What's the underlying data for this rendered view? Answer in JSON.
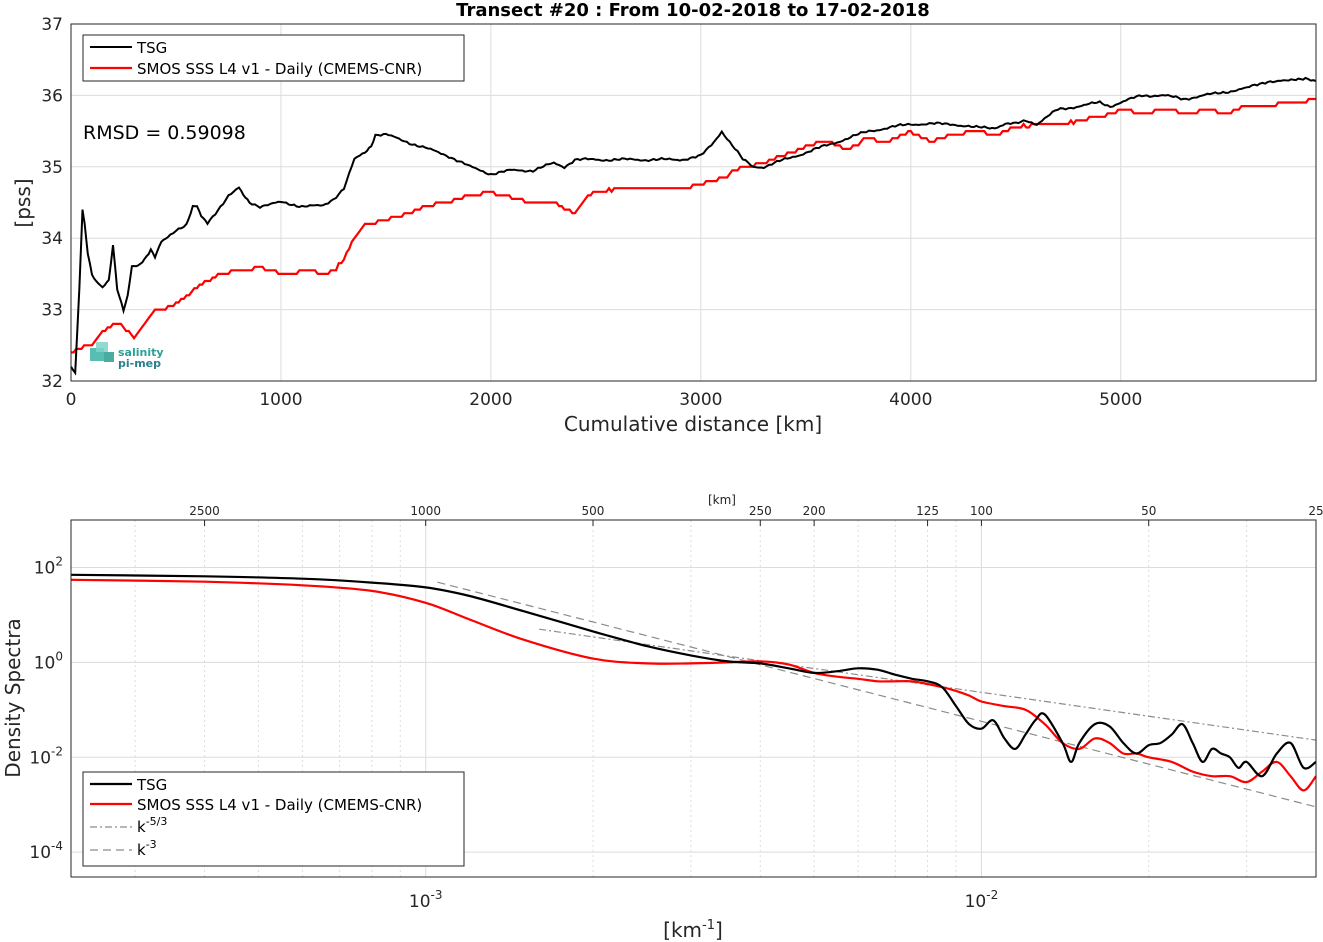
{
  "chart_data": [
    {
      "type": "line",
      "title": "Transect #20 : From 10-02-2018 to 17-02-2018",
      "xlabel": "Cumulative distance [km]",
      "ylabel": "[pss]",
      "xlim": [
        0,
        5930
      ],
      "ylim": [
        32,
        37
      ],
      "xticks": [
        "0",
        "1000",
        "2000",
        "3000",
        "4000",
        "5000"
      ],
      "yticks": [
        "32",
        "33",
        "34",
        "35",
        "36",
        "37"
      ],
      "grid": true,
      "legend": "top-left",
      "annotation": "RMSD = 0.59098",
      "watermark": {
        "line1": "salinity",
        "line2": "pi-mep"
      },
      "series": [
        {
          "name": "TSG",
          "color": "#000000",
          "x": [
            0,
            20,
            40,
            55,
            65,
            80,
            100,
            120,
            150,
            180,
            200,
            220,
            250,
            270,
            290,
            320,
            350,
            380,
            400,
            430,
            460,
            500,
            550,
            580,
            600,
            620,
            650,
            700,
            750,
            800,
            820,
            850,
            900,
            1000,
            1100,
            1200,
            1250,
            1300,
            1350,
            1400,
            1430,
            1450,
            1500,
            1600,
            1700,
            1800,
            1900,
            2000,
            2100,
            2200,
            2300,
            2350,
            2400,
            2500,
            2600,
            2700,
            2800,
            2900,
            3000,
            3050,
            3100,
            3150,
            3200,
            3250,
            3300,
            3400,
            3500,
            3600,
            3700,
            3800,
            3900,
            4000,
            4100,
            4200,
            4300,
            4400,
            4450,
            4500,
            4550,
            4600,
            4650,
            4700,
            4800,
            4900,
            4950,
            5000,
            5050,
            5100,
            5200,
            5300,
            5400,
            5500,
            5600,
            5700,
            5800,
            5880,
            5930
          ],
          "y": [
            32.2,
            32.1,
            33.3,
            34.4,
            34.2,
            33.8,
            33.5,
            33.4,
            33.3,
            33.4,
            33.9,
            33.3,
            33.0,
            33.2,
            33.6,
            33.6,
            33.7,
            33.85,
            33.75,
            33.95,
            34.0,
            34.1,
            34.2,
            34.45,
            34.45,
            34.3,
            34.2,
            34.4,
            34.6,
            34.7,
            34.6,
            34.5,
            34.45,
            34.5,
            34.45,
            34.45,
            34.55,
            34.7,
            35.1,
            35.2,
            35.3,
            35.45,
            35.45,
            35.35,
            35.25,
            35.15,
            35.0,
            34.9,
            34.95,
            34.95,
            35.05,
            35.0,
            35.1,
            35.1,
            35.1,
            35.1,
            35.1,
            35.1,
            35.15,
            35.3,
            35.5,
            35.3,
            35.1,
            35.0,
            35.0,
            35.1,
            35.2,
            35.3,
            35.4,
            35.5,
            35.55,
            35.6,
            35.6,
            35.6,
            35.55,
            35.55,
            35.6,
            35.6,
            35.65,
            35.6,
            35.7,
            35.8,
            35.85,
            35.9,
            35.85,
            35.9,
            35.95,
            36.0,
            36.0,
            35.95,
            36.0,
            36.05,
            36.1,
            36.2,
            36.2,
            36.25,
            36.2
          ]
        },
        {
          "name": "SMOS SSS L4 v1 - Daily (CMEMS-CNR)",
          "color": "#ff0000",
          "x": [
            0,
            50,
            100,
            150,
            200,
            250,
            300,
            350,
            400,
            450,
            500,
            550,
            600,
            650,
            700,
            800,
            900,
            1000,
            1100,
            1200,
            1250,
            1300,
            1350,
            1400,
            1500,
            1600,
            1700,
            1800,
            1900,
            2000,
            2050,
            2100,
            2200,
            2300,
            2400,
            2450,
            2500,
            2600,
            2700,
            2800,
            2900,
            3000,
            3100,
            3200,
            3300,
            3400,
            3500,
            3600,
            3700,
            3800,
            3900,
            4000,
            4100,
            4200,
            4300,
            4400,
            4500,
            4600,
            4700,
            4800,
            4900,
            5000,
            5100,
            5200,
            5300,
            5400,
            5500,
            5600,
            5700,
            5800,
            5930
          ],
          "y": [
            32.4,
            32.45,
            32.5,
            32.7,
            32.8,
            32.75,
            32.6,
            32.8,
            33.0,
            33.0,
            33.1,
            33.2,
            33.3,
            33.4,
            33.5,
            33.55,
            33.6,
            33.5,
            33.55,
            33.5,
            33.55,
            33.7,
            34.0,
            34.2,
            34.25,
            34.35,
            34.45,
            34.5,
            34.6,
            34.65,
            34.6,
            34.55,
            34.5,
            34.5,
            34.35,
            34.55,
            34.65,
            34.7,
            34.7,
            34.7,
            34.7,
            34.75,
            34.85,
            35.0,
            35.05,
            35.15,
            35.3,
            35.35,
            35.25,
            35.4,
            35.35,
            35.5,
            35.35,
            35.45,
            35.5,
            35.45,
            35.55,
            35.6,
            35.6,
            35.65,
            35.7,
            35.8,
            35.75,
            35.8,
            35.75,
            35.8,
            35.75,
            35.85,
            35.85,
            35.9,
            35.95
          ]
        }
      ]
    },
    {
      "type": "line",
      "title": "",
      "xlabel": "[km-1]",
      "ylabel": "Density Spectra",
      "xscale": "log",
      "yscale": "log",
      "xlim": [
        0.00023,
        0.04
      ],
      "ylim": [
        3e-05,
        1000
      ],
      "xticks": [
        "10-3",
        "10-2"
      ],
      "yticks": [
        "10-4",
        "10-2",
        "100",
        "102"
      ],
      "top_axis_label": "[km]",
      "top_ticks": [
        "2500",
        "1000",
        "500",
        "250",
        "200",
        "125",
        "100",
        "50",
        "25"
      ],
      "grid": true,
      "legend": "bottom-left",
      "series": [
        {
          "name": "TSG",
          "color": "#000000",
          "x": [
            0.00023,
            0.0004,
            0.0006,
            0.0008,
            0.001,
            0.0012,
            0.0015,
            0.002,
            0.0025,
            0.003,
            0.0035,
            0.004,
            0.0045,
            0.005,
            0.0055,
            0.006,
            0.0065,
            0.007,
            0.0075,
            0.008,
            0.0085,
            0.009,
            0.0095,
            0.01,
            0.0105,
            0.011,
            0.0115,
            0.012,
            0.0125,
            0.013,
            0.014,
            0.0145,
            0.015,
            0.016,
            0.017,
            0.018,
            0.019,
            0.02,
            0.021,
            0.022,
            0.023,
            0.024,
            0.025,
            0.026,
            0.027,
            0.028,
            0.029,
            0.03,
            0.032,
            0.034,
            0.036,
            0.038,
            0.04
          ],
          "y": [
            70,
            65,
            58,
            48,
            38,
            25,
            12,
            4.5,
            2.2,
            1.4,
            1.05,
            0.95,
            0.75,
            0.6,
            0.65,
            0.75,
            0.7,
            0.55,
            0.45,
            0.4,
            0.3,
            0.12,
            0.05,
            0.04,
            0.06,
            0.025,
            0.015,
            0.03,
            0.06,
            0.08,
            0.02,
            0.008,
            0.02,
            0.05,
            0.045,
            0.02,
            0.012,
            0.018,
            0.02,
            0.03,
            0.05,
            0.02,
            0.008,
            0.015,
            0.012,
            0.01,
            0.006,
            0.008,
            0.004,
            0.012,
            0.02,
            0.006,
            0.008
          ]
        },
        {
          "name": "SMOS SSS L4 v1 - Daily (CMEMS-CNR)",
          "color": "#ff0000",
          "x": [
            0.00023,
            0.0004,
            0.0006,
            0.0008,
            0.001,
            0.0012,
            0.0015,
            0.002,
            0.0025,
            0.003,
            0.0035,
            0.004,
            0.0045,
            0.005,
            0.0055,
            0.006,
            0.0065,
            0.007,
            0.0075,
            0.008,
            0.0085,
            0.009,
            0.0095,
            0.01,
            0.011,
            0.012,
            0.013,
            0.014,
            0.015,
            0.016,
            0.017,
            0.018,
            0.019,
            0.02,
            0.022,
            0.024,
            0.026,
            0.028,
            0.03,
            0.032,
            0.034,
            0.036,
            0.038,
            0.04
          ],
          "y": [
            55,
            50,
            42,
            32,
            18,
            8,
            3.0,
            1.2,
            0.95,
            0.95,
            1.0,
            1.05,
            0.9,
            0.6,
            0.5,
            0.45,
            0.4,
            0.4,
            0.4,
            0.35,
            0.3,
            0.25,
            0.2,
            0.15,
            0.12,
            0.1,
            0.05,
            0.02,
            0.015,
            0.025,
            0.02,
            0.012,
            0.012,
            0.01,
            0.008,
            0.005,
            0.004,
            0.004,
            0.003,
            0.005,
            0.008,
            0.004,
            0.002,
            0.004
          ]
        },
        {
          "name": "k-5/3",
          "color": "#8c8c8c",
          "x": [
            0.0016,
            0.04
          ],
          "y": [
            5.0,
            0.023
          ]
        },
        {
          "name": "k-3",
          "color": "#8c8c8c",
          "x": [
            0.00105,
            0.04
          ],
          "y": [
            49.0,
            0.0009
          ]
        }
      ]
    }
  ]
}
